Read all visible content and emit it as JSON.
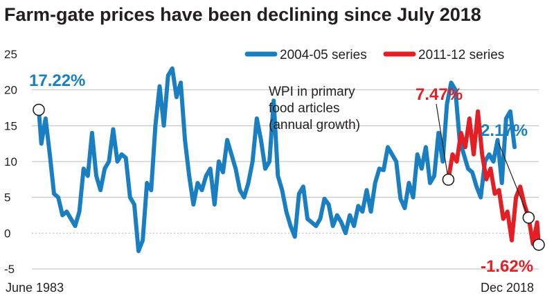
{
  "colors": {
    "series_2004": "#1a7fc1",
    "series_2011": "#e31e24",
    "grid": "#bbbbbb",
    "text": "#231f20"
  },
  "chart_data": {
    "type": "line",
    "title": "Farm-gate prices have been declining since July 2018",
    "xlabel": "",
    "ylabel": "",
    "ylim": [
      -5,
      25
    ],
    "yticks": [
      -5,
      0,
      5,
      10,
      15,
      20,
      25
    ],
    "yticklabels": [
      "-5",
      "0",
      "5",
      "10",
      "15",
      "20",
      "25"
    ],
    "x_start_label": "June 1983",
    "x_end_label": "Dec 2018",
    "x_range": [
      1983.42,
      2018.92
    ],
    "grid": true,
    "legend_position": "top-right",
    "annotation": [
      "WPI in primary",
      "food articles",
      "(annual growth)"
    ],
    "series": [
      {
        "name": "2004-05 series",
        "x": [
          1983.42,
          1983.6,
          1983.9,
          1984.2,
          1984.5,
          1984.8,
          1985.1,
          1985.4,
          1985.7,
          1986.0,
          1986.3,
          1986.6,
          1986.9,
          1987.2,
          1987.5,
          1987.8,
          1988.1,
          1988.4,
          1988.7,
          1989.0,
          1989.3,
          1989.6,
          1989.9,
          1990.2,
          1990.5,
          1990.8,
          1991.1,
          1991.4,
          1991.7,
          1992.0,
          1992.3,
          1992.6,
          1992.9,
          1993.2,
          1993.5,
          1993.8,
          1994.1,
          1994.4,
          1994.7,
          1995.0,
          1995.3,
          1995.6,
          1995.9,
          1996.2,
          1996.5,
          1996.8,
          1997.1,
          1997.4,
          1997.7,
          1998.0,
          1998.3,
          1998.6,
          1998.9,
          1999.2,
          1999.5,
          1999.8,
          2000.1,
          2000.4,
          2000.7,
          2001.0,
          2001.3,
          2001.6,
          2001.9,
          2002.2,
          2002.5,
          2002.8,
          2003.1,
          2003.4,
          2003.7,
          2004.0,
          2004.3,
          2004.6,
          2004.9,
          2005.2,
          2005.5,
          2005.8,
          2006.1,
          2006.4,
          2006.7,
          2007.0,
          2007.3,
          2007.6,
          2007.9,
          2008.2,
          2008.5,
          2008.8,
          2009.1,
          2009.4,
          2009.7,
          2010.0,
          2010.3,
          2010.6,
          2010.9,
          2011.2,
          2011.5,
          2011.8,
          2012.1,
          2012.4,
          2012.7,
          2013.0,
          2013.3,
          2013.6,
          2013.9,
          2014.2,
          2014.5,
          2014.8,
          2015.1,
          2015.4,
          2015.7,
          2016.0,
          2016.3,
          2016.6,
          2016.9,
          2017.2
        ],
        "y": [
          17.22,
          12.5,
          16,
          11,
          5.5,
          5,
          2.5,
          3,
          2,
          1,
          3,
          9,
          8,
          14,
          8,
          6,
          9,
          10,
          14.5,
          10,
          11,
          10.5,
          5,
          4,
          -2.5,
          -1,
          7,
          6,
          15,
          20.5,
          15,
          22,
          23,
          19,
          21,
          13,
          8,
          4,
          7,
          6,
          8,
          9,
          4,
          10,
          8.5,
          13,
          11,
          9,
          6,
          5,
          7,
          10,
          16,
          13,
          9,
          10,
          18.5,
          8,
          6,
          3,
          1,
          -0.5,
          5.5,
          6.5,
          2,
          1.5,
          1,
          2,
          4.8,
          4,
          1,
          2.5,
          1.5,
          0,
          2.5,
          1,
          3.8,
          3,
          6,
          3,
          7,
          9,
          8.8,
          12,
          11,
          10,
          4.8,
          3.5,
          7,
          5,
          11,
          9,
          12,
          7,
          8,
          14,
          10,
          18,
          21,
          20,
          13,
          11,
          9,
          8.5,
          6.5,
          5,
          10,
          11,
          10,
          13,
          7,
          16,
          17,
          12
        ]
      },
      {
        "name": "2011-12 series",
        "x": [
          2012.5,
          2012.8,
          2013.1,
          2013.4,
          2013.7,
          2014.0,
          2014.3,
          2014.6,
          2014.9,
          2015.2,
          2015.5,
          2015.8,
          2016.1,
          2016.4,
          2016.7,
          2017.0,
          2017.3,
          2017.6,
          2017.9,
          2018.2,
          2018.5,
          2018.8,
          2018.92
        ],
        "y": [
          7.47,
          11,
          10,
          14,
          12,
          16,
          11,
          17,
          11,
          7.5,
          9,
          5.5,
          6,
          2,
          3,
          -1,
          5,
          6.5,
          4,
          2.17,
          -1.5,
          1.5,
          -1.62
        ]
      }
    ],
    "callouts": [
      {
        "label": "17.22%",
        "x": 1983.42,
        "y": 17.22,
        "series": 0
      },
      {
        "label": "7.47%",
        "x": 2012.5,
        "y": 7.47,
        "series": 1
      },
      {
        "label": "2.17%",
        "x": 2018.2,
        "y": 2.17,
        "series": 0
      },
      {
        "label": "-1.62%",
        "x": 2018.92,
        "y": -1.62,
        "series": 1
      }
    ]
  }
}
